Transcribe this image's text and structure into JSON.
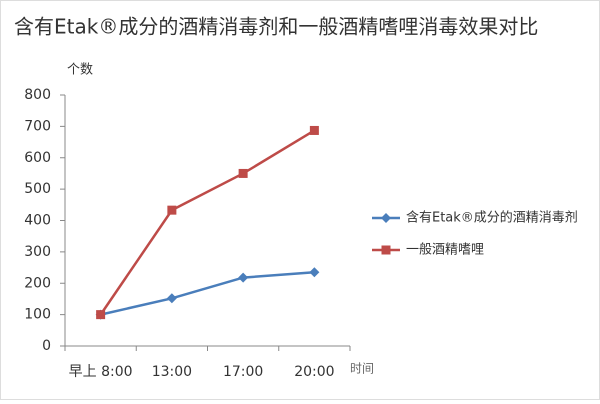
{
  "chart_data": {
    "type": "line",
    "title": "含有Etak®成分的酒精消毒剂和一般酒精嗜哩消毒效果对比",
    "y_label": "个数",
    "x_label": "时间",
    "categories": [
      "早上 8:00",
      "13:00",
      "17:00",
      "20:00"
    ],
    "series": [
      {
        "name": "含有Etak®成分的酒精消毒剂",
        "color": "#4a7ebb",
        "marker": "diamond",
        "values": [
          100,
          152,
          218,
          235
        ]
      },
      {
        "name": "一般酒精嗜哩",
        "color": "#be4b48",
        "marker": "square",
        "values": [
          100,
          433,
          550,
          687
        ]
      }
    ],
    "ylim": [
      0,
      800
    ],
    "yticks": [
      0,
      100,
      200,
      300,
      400,
      500,
      600,
      700,
      800
    ],
    "grid": false,
    "legend": "right"
  }
}
